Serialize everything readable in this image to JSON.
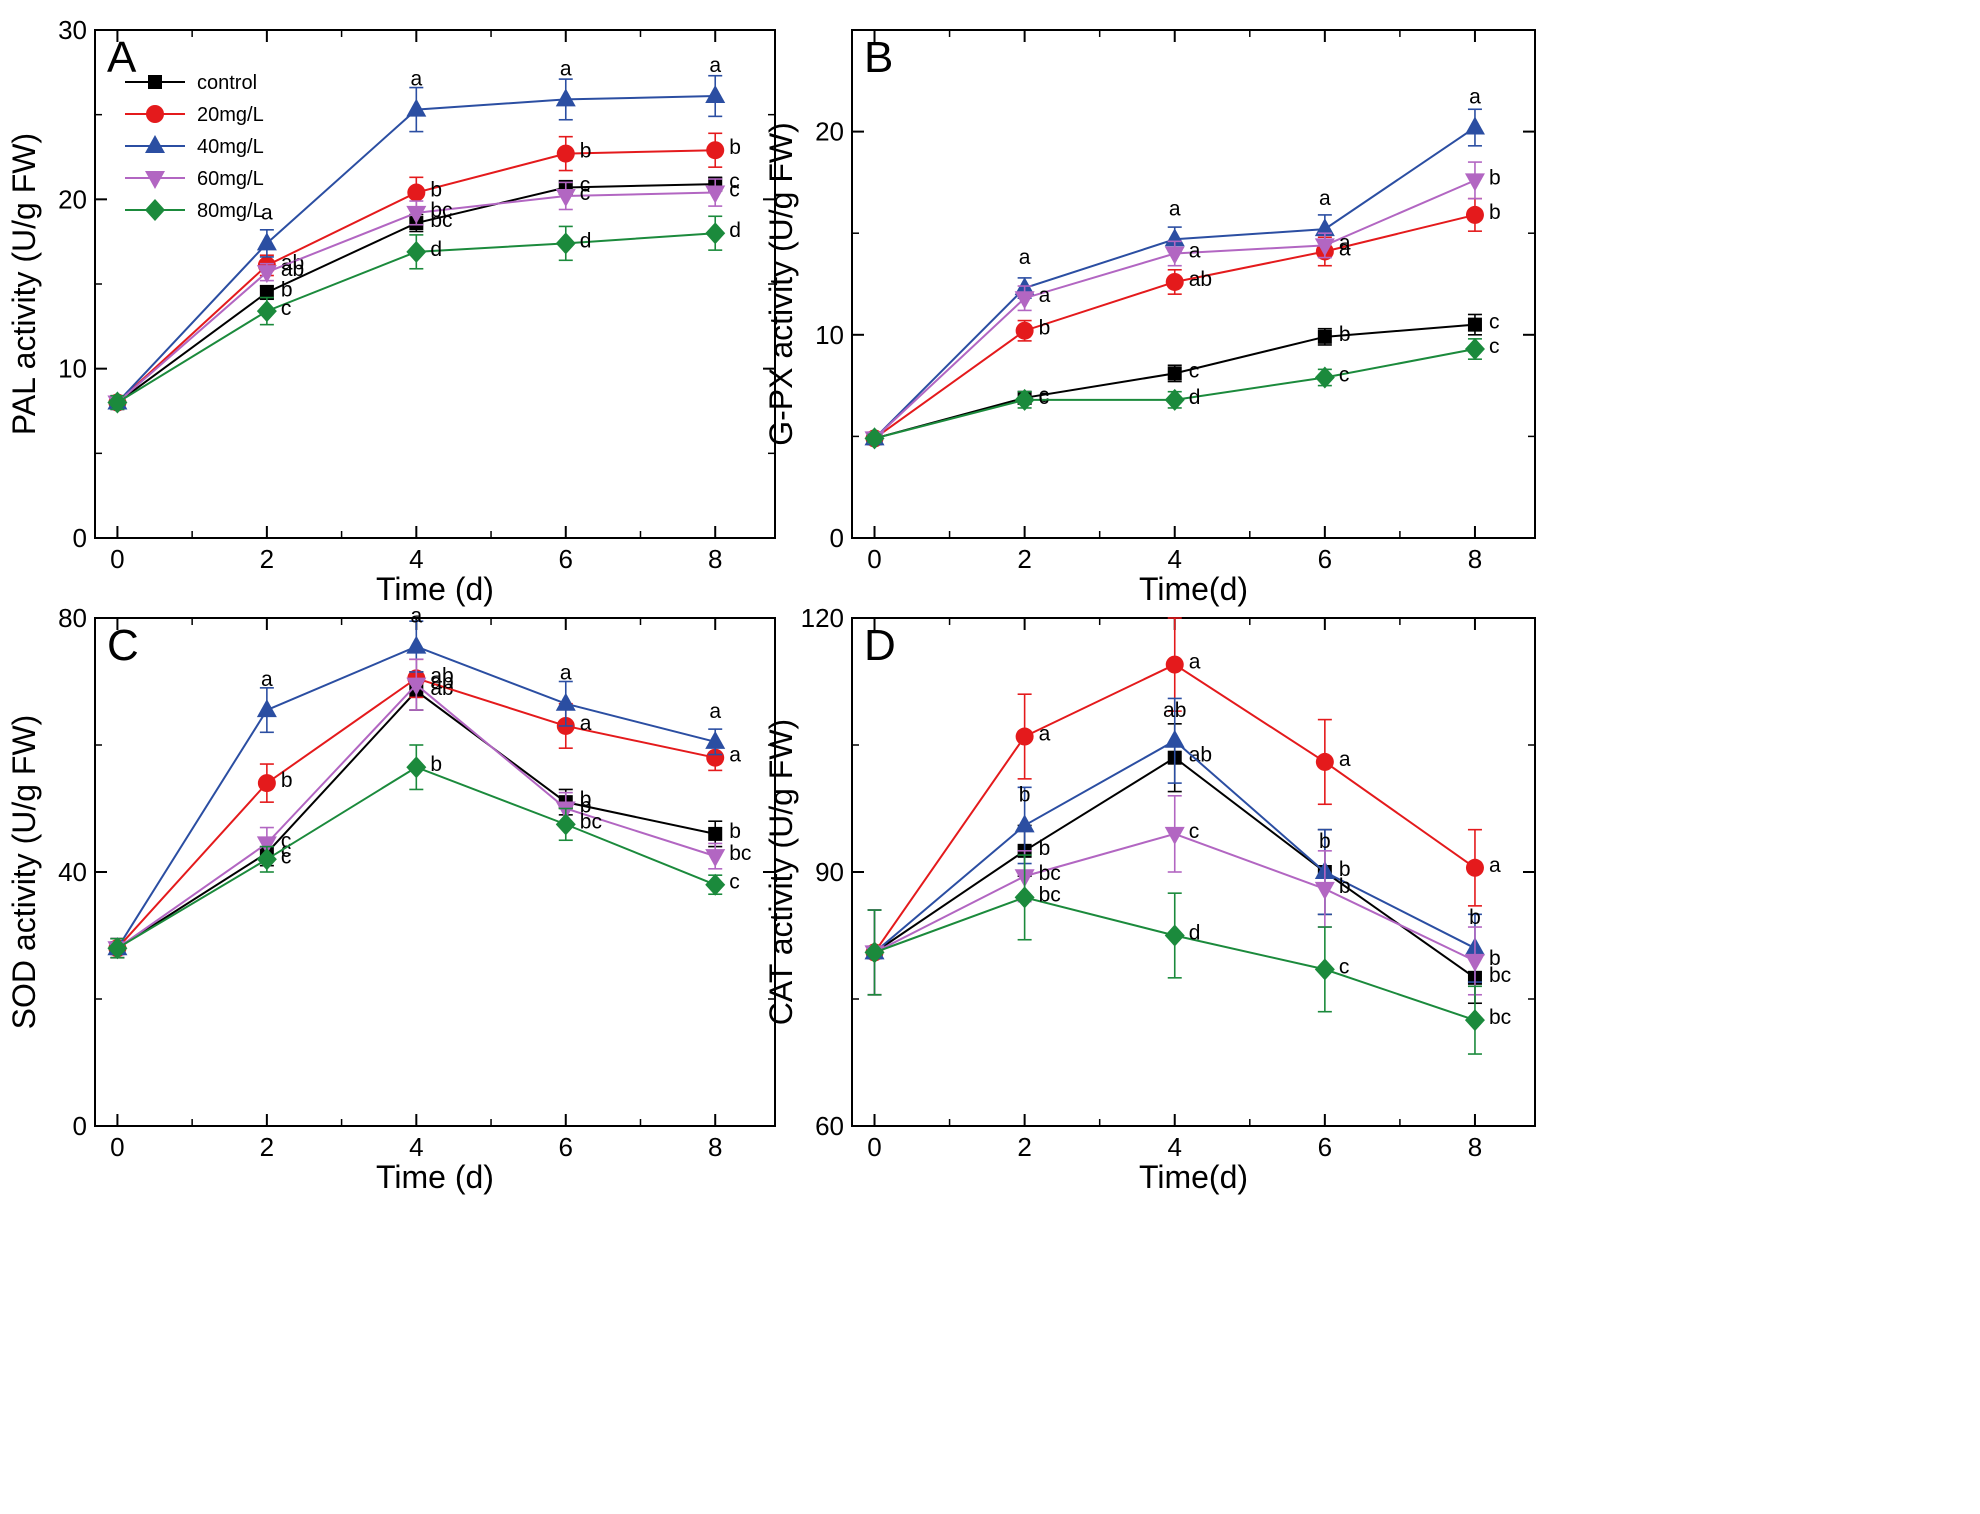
{
  "legend": {
    "series": [
      {
        "name": "control",
        "color": "#000000",
        "marker": "square"
      },
      {
        "name": "20mg/L",
        "color": "#e41a1c",
        "marker": "circle"
      },
      {
        "name": "40mg/L",
        "color": "#2b4ea2",
        "marker": "triangle-up"
      },
      {
        "name": "60mg/L",
        "color": "#b266c2",
        "marker": "triangle-down"
      },
      {
        "name": "80mg/L",
        "color": "#1b8a3c",
        "marker": "diamond"
      }
    ]
  },
  "chart_data": [
    {
      "panel": "A",
      "type": "line",
      "xlabel": "Time (d)",
      "ylabel": "PAL activity (U/g FW)",
      "x": [
        0,
        2,
        4,
        6,
        8
      ],
      "xlim": [
        -0.3,
        8.8
      ],
      "ylim": [
        0,
        30
      ],
      "xticks": [
        0,
        2,
        4,
        6,
        8
      ],
      "yticks": [
        0,
        10,
        20,
        30
      ],
      "legend": "top-left",
      "series": [
        {
          "name": "control",
          "values": [
            8,
            14.5,
            18.6,
            20.7,
            20.9
          ],
          "err": [
            0.4,
            0.4,
            0.5,
            0.4,
            0.4
          ],
          "letters": [
            "",
            "b",
            "bc",
            "c",
            "c"
          ]
        },
        {
          "name": "20mg/L",
          "values": [
            8,
            16.1,
            20.4,
            22.7,
            22.9
          ],
          "err": [
            0.4,
            0.6,
            0.9,
            1.0,
            1.0
          ],
          "letters": [
            "",
            "ab",
            "b",
            "b",
            "b"
          ]
        },
        {
          "name": "40mg/L",
          "values": [
            8,
            17.4,
            25.3,
            25.9,
            26.1
          ],
          "err": [
            0.4,
            0.8,
            1.3,
            1.2,
            1.2
          ],
          "letters": [
            "",
            "a",
            "a",
            "a",
            "a"
          ]
        },
        {
          "name": "60mg/L",
          "values": [
            8,
            15.7,
            19.2,
            20.2,
            20.4
          ],
          "err": [
            0.4,
            0.5,
            0.7,
            0.8,
            0.8
          ],
          "letters": [
            "",
            "ab",
            "bc",
            "c",
            "c"
          ]
        },
        {
          "name": "80mg/L",
          "values": [
            8,
            13.4,
            16.9,
            17.4,
            18.0
          ],
          "err": [
            0.4,
            0.8,
            1.0,
            1.0,
            1.0
          ],
          "letters": [
            "",
            "c",
            "d",
            "d",
            "d"
          ]
        }
      ]
    },
    {
      "panel": "B",
      "type": "line",
      "xlabel": "Time(d)",
      "ylabel": "G-PX activity (U/g FW)",
      "x": [
        0,
        2,
        4,
        6,
        8
      ],
      "xlim": [
        -0.3,
        8.8
      ],
      "ylim": [
        0,
        25
      ],
      "xticks": [
        0,
        2,
        4,
        6,
        8
      ],
      "yticks": [
        0,
        10,
        20
      ],
      "series": [
        {
          "name": "control",
          "values": [
            4.9,
            6.9,
            8.1,
            9.9,
            10.5
          ],
          "err": [
            0.2,
            0.3,
            0.4,
            0.4,
            0.5
          ],
          "letters": [
            "",
            "c",
            "c",
            "b",
            "c"
          ]
        },
        {
          "name": "20mg/L",
          "values": [
            4.9,
            10.2,
            12.6,
            14.1,
            15.9
          ],
          "err": [
            0.2,
            0.5,
            0.6,
            0.7,
            0.8
          ],
          "letters": [
            "",
            "b",
            "ab",
            "a",
            "b"
          ]
        },
        {
          "name": "40mg/L",
          "values": [
            4.9,
            12.3,
            14.7,
            15.2,
            20.2
          ],
          "err": [
            0.2,
            0.5,
            0.6,
            0.7,
            0.9
          ],
          "letters": [
            "",
            "a",
            "a",
            "a",
            "a"
          ]
        },
        {
          "name": "60mg/L",
          "values": [
            4.9,
            11.8,
            14.0,
            14.4,
            17.6
          ],
          "err": [
            0.2,
            0.6,
            0.6,
            0.6,
            0.9
          ],
          "letters": [
            "",
            "a",
            "a",
            "a",
            "b"
          ]
        },
        {
          "name": "80mg/L",
          "values": [
            4.9,
            6.8,
            6.8,
            7.9,
            9.3
          ],
          "err": [
            0.2,
            0.4,
            0.4,
            0.4,
            0.5
          ],
          "letters": [
            "",
            "c",
            "d",
            "c",
            "c"
          ]
        }
      ]
    },
    {
      "panel": "C",
      "type": "line",
      "xlabel": "Time (d)",
      "ylabel": "SOD activity (U/g FW)",
      "x": [
        0,
        2,
        4,
        6,
        8
      ],
      "xlim": [
        -0.3,
        8.8
      ],
      "ylim": [
        0,
        80
      ],
      "xticks": [
        0,
        2,
        4,
        6,
        8
      ],
      "yticks": [
        0,
        40,
        80
      ],
      "series": [
        {
          "name": "control",
          "values": [
            28,
            43,
            68.5,
            51,
            46
          ],
          "err": [
            1.5,
            2.0,
            3.0,
            2.0,
            2.0
          ],
          "letters": [
            "",
            "c",
            "ab",
            "b",
            "b"
          ]
        },
        {
          "name": "20mg/L",
          "values": [
            28,
            54,
            70.5,
            63,
            58
          ],
          "err": [
            1.5,
            3.0,
            3.0,
            3.5,
            2.0
          ],
          "letters": [
            "",
            "b",
            "ab",
            "a",
            "a"
          ]
        },
        {
          "name": "40mg/L",
          "values": [
            28,
            65.5,
            75.5,
            66.5,
            60.5
          ],
          "err": [
            1.5,
            3.5,
            4.0,
            3.5,
            2.0
          ],
          "letters": [
            "",
            "a",
            "a",
            "a",
            "a"
          ]
        },
        {
          "name": "60mg/L",
          "values": [
            28,
            44.5,
            69.5,
            50,
            42.5
          ],
          "err": [
            1.5,
            2.5,
            4.0,
            2.5,
            2.0
          ],
          "letters": [
            "",
            "c",
            "ab",
            "b",
            "bc"
          ]
        },
        {
          "name": "80mg/L",
          "values": [
            28,
            42,
            56.5,
            47.5,
            38
          ],
          "err": [
            1.5,
            2.0,
            3.5,
            2.5,
            1.5
          ],
          "letters": [
            "",
            "c",
            "b",
            "bc",
            "c"
          ]
        }
      ]
    },
    {
      "panel": "D",
      "type": "line",
      "xlabel": "Time(d)",
      "ylabel": "CAT activity (U/g FW)",
      "x": [
        0,
        2,
        4,
        6,
        8
      ],
      "xlim": [
        -0.3,
        8.8
      ],
      "ylim": [
        60,
        120
      ],
      "xticks": [
        0,
        2,
        4,
        6,
        8
      ],
      "yticks": [
        60,
        90,
        120
      ],
      "series": [
        {
          "name": "control",
          "values": [
            80.5,
            92.5,
            103.5,
            90,
            77.5
          ],
          "err": [
            5,
            3,
            4,
            5,
            3
          ],
          "letters": [
            "",
            "b",
            "ab",
            "b",
            "bc"
          ]
        },
        {
          "name": "20mg/L",
          "values": [
            80.5,
            106,
            114.5,
            103,
            90.5
          ],
          "err": [
            5,
            5,
            5.5,
            5,
            4.5
          ],
          "letters": [
            "",
            "a",
            "a",
            "a",
            "a"
          ]
        },
        {
          "name": "40mg/L",
          "values": [
            80.5,
            95.5,
            105.5,
            90,
            81
          ],
          "err": [
            5,
            4.5,
            5,
            5,
            4
          ],
          "letters": [
            "",
            "b",
            "ab",
            "b",
            "b"
          ]
        },
        {
          "name": "60mg/L",
          "values": [
            80.5,
            89.5,
            94.5,
            88,
            79.5
          ],
          "err": [
            5,
            3,
            4.5,
            4.5,
            4
          ],
          "letters": [
            "",
            "bc",
            "c",
            "b",
            "b"
          ]
        },
        {
          "name": "80mg/L",
          "values": [
            80.5,
            87,
            82.5,
            78.5,
            72.5
          ],
          "err": [
            5,
            5,
            5,
            5,
            4
          ],
          "letters": [
            "",
            "bc",
            "d",
            "c",
            "bc"
          ]
        }
      ]
    }
  ]
}
